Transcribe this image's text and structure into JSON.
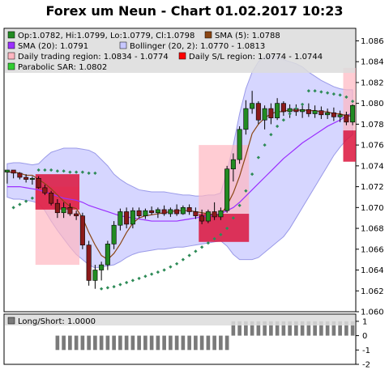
{
  "title": "Forex um Neun - Chart 01.02.2017 10:23",
  "legend": {
    "ohlc": "Op:1.0782, Hi:1.0799, Lo:1.0779, Cl:1.0798",
    "sma5": "SMA (5): 1.0788",
    "sma20": "SMA (20): 1.0791",
    "bollinger": "Bollinger (20, 2): 1.0770 - 1.0813",
    "daily_region": "Daily trading region: 1.0834 - 1.0774",
    "daily_sl": "Daily S/L region: 1.0774 - 1.0744",
    "sar": "Parabolic SAR: 1.0802",
    "long_short": "Long/Short: 1.0000"
  },
  "colors": {
    "candle_up": "#228b22",
    "candle_down": "#8b1a1a",
    "sma5": "#8b4513",
    "sma20": "#9b30ff",
    "bollinger_fill": "#c8c8ff",
    "bollinger_line": "#9a9ae8",
    "region_pink": "#ffb6c1",
    "region_red": "#dc143c",
    "sar": "#2e8b57",
    "bars": "#7a7a7a"
  },
  "chart_data": [
    {
      "type": "candlestick",
      "ylim": [
        1.06,
        1.0872
      ],
      "yticks": [
        "1.060",
        "1.062",
        "1.064",
        "1.066",
        "1.068",
        "1.070",
        "1.072",
        "1.074",
        "1.076",
        "1.078",
        "1.080",
        "1.082",
        "1.084",
        "1.086"
      ],
      "candles": [
        {
          "o": 1.0734,
          "h": 1.0736,
          "l": 1.0723,
          "c": 1.0736
        },
        {
          "o": 1.0736,
          "h": 1.0736,
          "l": 1.0728,
          "c": 1.0733
        },
        {
          "o": 1.0733,
          "h": 1.0734,
          "l": 1.0727,
          "c": 1.0729
        },
        {
          "o": 1.0729,
          "h": 1.0732,
          "l": 1.0724,
          "c": 1.0727
        },
        {
          "o": 1.0727,
          "h": 1.073,
          "l": 1.0722,
          "c": 1.0728
        },
        {
          "o": 1.0728,
          "h": 1.073,
          "l": 1.0718,
          "c": 1.0719
        },
        {
          "o": 1.0719,
          "h": 1.0722,
          "l": 1.0712,
          "c": 1.0714
        },
        {
          "o": 1.0714,
          "h": 1.0716,
          "l": 1.0702,
          "c": 1.0704
        },
        {
          "o": 1.0704,
          "h": 1.0708,
          "l": 1.069,
          "c": 1.0695
        },
        {
          "o": 1.0695,
          "h": 1.0705,
          "l": 1.069,
          "c": 1.07
        },
        {
          "o": 1.07,
          "h": 1.0704,
          "l": 1.0692,
          "c": 1.0694
        },
        {
          "o": 1.0694,
          "h": 1.0697,
          "l": 1.0688,
          "c": 1.0692
        },
        {
          "o": 1.0692,
          "h": 1.0695,
          "l": 1.066,
          "c": 1.0664
        },
        {
          "o": 1.0664,
          "h": 1.0668,
          "l": 1.0625,
          "c": 1.063
        },
        {
          "o": 1.063,
          "h": 1.0645,
          "l": 1.0622,
          "c": 1.064
        },
        {
          "o": 1.064,
          "h": 1.0648,
          "l": 1.063,
          "c": 1.0645
        },
        {
          "o": 1.0645,
          "h": 1.0668,
          "l": 1.064,
          "c": 1.0665
        },
        {
          "o": 1.0665,
          "h": 1.0687,
          "l": 1.066,
          "c": 1.0683
        },
        {
          "o": 1.0683,
          "h": 1.0699,
          "l": 1.0678,
          "c": 1.0696
        },
        {
          "o": 1.0696,
          "h": 1.07,
          "l": 1.068,
          "c": 1.0684
        },
        {
          "o": 1.0684,
          "h": 1.07,
          "l": 1.068,
          "c": 1.0697
        },
        {
          "o": 1.0697,
          "h": 1.07,
          "l": 1.069,
          "c": 1.0692
        },
        {
          "o": 1.0692,
          "h": 1.0699,
          "l": 1.0689,
          "c": 1.0697
        },
        {
          "o": 1.0697,
          "h": 1.0701,
          "l": 1.0693,
          "c": 1.0695
        },
        {
          "o": 1.0695,
          "h": 1.07,
          "l": 1.069,
          "c": 1.0698
        },
        {
          "o": 1.0698,
          "h": 1.0702,
          "l": 1.0692,
          "c": 1.0694
        },
        {
          "o": 1.0694,
          "h": 1.07,
          "l": 1.0691,
          "c": 1.0698
        },
        {
          "o": 1.0698,
          "h": 1.0703,
          "l": 1.0692,
          "c": 1.0694
        },
        {
          "o": 1.0694,
          "h": 1.0702,
          "l": 1.0693,
          "c": 1.07
        },
        {
          "o": 1.07,
          "h": 1.0703,
          "l": 1.0693,
          "c": 1.0696
        },
        {
          "o": 1.0696,
          "h": 1.07,
          "l": 1.0689,
          "c": 1.0692
        },
        {
          "o": 1.0692,
          "h": 1.0698,
          "l": 1.0684,
          "c": 1.0687
        },
        {
          "o": 1.0687,
          "h": 1.0698,
          "l": 1.0685,
          "c": 1.0696
        },
        {
          "o": 1.0696,
          "h": 1.0705,
          "l": 1.0688,
          "c": 1.0691
        },
        {
          "o": 1.0691,
          "h": 1.07,
          "l": 1.0688,
          "c": 1.0697
        },
        {
          "o": 1.0697,
          "h": 1.074,
          "l": 1.0695,
          "c": 1.0737
        },
        {
          "o": 1.0737,
          "h": 1.0752,
          "l": 1.0725,
          "c": 1.0746
        },
        {
          "o": 1.0746,
          "h": 1.0778,
          "l": 1.0742,
          "c": 1.0775
        },
        {
          "o": 1.0775,
          "h": 1.0803,
          "l": 1.077,
          "c": 1.0795
        },
        {
          "o": 1.0795,
          "h": 1.0812,
          "l": 1.079,
          "c": 1.08
        },
        {
          "o": 1.08,
          "h": 1.0802,
          "l": 1.078,
          "c": 1.0784
        },
        {
          "o": 1.0784,
          "h": 1.0798,
          "l": 1.0775,
          "c": 1.0795
        },
        {
          "o": 1.0795,
          "h": 1.08,
          "l": 1.078,
          "c": 1.0786
        },
        {
          "o": 1.0786,
          "h": 1.0805,
          "l": 1.0784,
          "c": 1.08
        },
        {
          "o": 1.08,
          "h": 1.0802,
          "l": 1.0788,
          "c": 1.0792
        },
        {
          "o": 1.0792,
          "h": 1.0799,
          "l": 1.0786,
          "c": 1.0795
        },
        {
          "o": 1.0795,
          "h": 1.0799,
          "l": 1.0788,
          "c": 1.0792
        },
        {
          "o": 1.0792,
          "h": 1.0798,
          "l": 1.0786,
          "c": 1.0794
        },
        {
          "o": 1.0794,
          "h": 1.08,
          "l": 1.0787,
          "c": 1.079
        },
        {
          "o": 1.079,
          "h": 1.0798,
          "l": 1.0786,
          "c": 1.0793
        },
        {
          "o": 1.0793,
          "h": 1.0797,
          "l": 1.0785,
          "c": 1.0789
        },
        {
          "o": 1.0789,
          "h": 1.0795,
          "l": 1.0785,
          "c": 1.0791
        },
        {
          "o": 1.0791,
          "h": 1.0796,
          "l": 1.0783,
          "c": 1.0787
        },
        {
          "o": 1.0787,
          "h": 1.0793,
          "l": 1.0782,
          "c": 1.0789
        },
        {
          "o": 1.0789,
          "h": 1.0792,
          "l": 1.0779,
          "c": 1.0782
        },
        {
          "o": 1.0782,
          "h": 1.0799,
          "l": 1.0779,
          "c": 1.0798
        }
      ],
      "sma5": [
        1.0734,
        1.0734,
        1.0733,
        1.0731,
        1.0731,
        1.0727,
        1.0723,
        1.0718,
        1.0712,
        1.0706,
        1.0701,
        1.0699,
        1.069,
        1.0676,
        1.0664,
        1.0654,
        1.065,
        1.0656,
        1.0665,
        1.0676,
        1.0685,
        1.069,
        1.0692,
        1.0693,
        1.0694,
        1.0695,
        1.0696,
        1.0697,
        1.0697,
        1.0697,
        1.0696,
        1.0695,
        1.0694,
        1.0693,
        1.0693,
        1.0702,
        1.0714,
        1.073,
        1.075,
        1.0771,
        1.078,
        1.0786,
        1.079,
        1.0792,
        1.0792,
        1.0794,
        1.0793,
        1.0794,
        1.0793,
        1.0793,
        1.0792,
        1.0792,
        1.079,
        1.079,
        1.0788,
        1.0788
      ],
      "sma20": [
        1.072,
        1.072,
        1.072,
        1.0719,
        1.0718,
        1.0717,
        1.0715,
        1.0713,
        1.0711,
        1.0709,
        1.0708,
        1.0707,
        1.0705,
        1.0702,
        1.07,
        1.0698,
        1.0696,
        1.0694,
        1.0692,
        1.0691,
        1.069,
        1.0689,
        1.0688,
        1.0687,
        1.0687,
        1.0687,
        1.0687,
        1.0687,
        1.0688,
        1.0689,
        1.069,
        1.0691,
        1.0692,
        1.0693,
        1.0694,
        1.0697,
        1.07,
        1.0705,
        1.0711,
        1.0717,
        1.0723,
        1.0729,
        1.0735,
        1.0741,
        1.0747,
        1.0752,
        1.0757,
        1.0762,
        1.0766,
        1.077,
        1.0774,
        1.0778,
        1.0781,
        1.0784,
        1.0788,
        1.0791
      ],
      "boll_upper": [
        1.0742,
        1.0743,
        1.0743,
        1.0742,
        1.0741,
        1.0742,
        1.0748,
        1.0753,
        1.0755,
        1.0757,
        1.0757,
        1.0757,
        1.0756,
        1.0755,
        1.0752,
        1.0746,
        1.074,
        1.0732,
        1.0727,
        1.0723,
        1.072,
        1.0717,
        1.0716,
        1.0715,
        1.0715,
        1.0715,
        1.0714,
        1.0713,
        1.0712,
        1.0712,
        1.0711,
        1.0711,
        1.0712,
        1.0712,
        1.0714,
        1.0735,
        1.076,
        1.079,
        1.0814,
        1.083,
        1.084,
        1.0845,
        1.0846,
        1.0845,
        1.0842,
        1.084,
        1.0838,
        1.0835,
        1.083,
        1.0826,
        1.0822,
        1.0819,
        1.0816,
        1.0814,
        1.0813,
        1.0813
      ],
      "boll_lower": [
        1.071,
        1.0708,
        1.0708,
        1.0707,
        1.0706,
        1.0704,
        1.0697,
        1.0687,
        1.0678,
        1.067,
        1.0662,
        1.0655,
        1.065,
        1.0645,
        1.0642,
        1.0643,
        1.0644,
        1.0645,
        1.0648,
        1.0652,
        1.0655,
        1.0657,
        1.0658,
        1.0659,
        1.066,
        1.066,
        1.0661,
        1.0662,
        1.0662,
        1.0663,
        1.0664,
        1.0665,
        1.0666,
        1.0667,
        1.0668,
        1.0663,
        1.0655,
        1.065,
        1.065,
        1.065,
        1.0652,
        1.0657,
        1.0662,
        1.0667,
        1.0672,
        1.068,
        1.069,
        1.07,
        1.071,
        1.072,
        1.073,
        1.074,
        1.075,
        1.0758,
        1.0765,
        1.077
      ],
      "sar": [
        null,
        1.07,
        1.0703,
        1.0706,
        1.0709,
        1.0736,
        1.0736,
        1.0736,
        1.0735,
        1.0735,
        1.0734,
        1.0734,
        1.0734,
        1.0733,
        1.0733,
        1.0622,
        1.0623,
        1.0624,
        1.0626,
        1.0628,
        1.063,
        1.0632,
        1.0634,
        1.0636,
        1.0638,
        1.064,
        1.0643,
        1.0646,
        1.065,
        1.0654,
        1.0658,
        1.0662,
        1.0666,
        1.067,
        1.0674,
        1.068,
        1.069,
        1.0702,
        1.0716,
        1.0732,
        1.0748,
        1.076,
        1.077,
        1.0778,
        1.0784,
        1.079,
        1.0795,
        1.0799,
        1.0812,
        1.0812,
        1.0811,
        1.081,
        1.0809,
        1.0808,
        1.0806,
        1.0802
      ],
      "regions": [
        {
          "from": 5,
          "to": 12,
          "top": 1.072,
          "bottom": 1.0645,
          "color": "pink"
        },
        {
          "from": 5,
          "to": 12,
          "top": 1.0732,
          "bottom": 1.0698,
          "color": "red"
        },
        {
          "from": 31,
          "to": 39,
          "top": 1.076,
          "bottom": 1.0694,
          "color": "pink"
        },
        {
          "from": 31,
          "to": 39,
          "top": 1.0694,
          "bottom": 1.0667,
          "color": "red"
        },
        {
          "from": 54,
          "to": 56,
          "top": 1.0834,
          "bottom": 1.0774,
          "color": "pink"
        },
        {
          "from": 54,
          "to": 56,
          "top": 1.0774,
          "bottom": 1.0744,
          "color": "red"
        }
      ]
    },
    {
      "type": "bar",
      "name": "Long/Short",
      "ylim": [
        -2,
        1.5
      ],
      "yticks": [
        "1",
        "0",
        "-1",
        "-2"
      ],
      "values": [
        0,
        0,
        0,
        0,
        0,
        0,
        0,
        0,
        -1,
        -1,
        -1,
        -1,
        -1,
        -1,
        -1,
        -1,
        -1,
        -1,
        -1,
        -1,
        -1,
        -1,
        -1,
        -1,
        -1,
        -1,
        -1,
        -1,
        -1,
        -1,
        -1,
        -1,
        -1,
        -1,
        -1,
        -1,
        1,
        1,
        1,
        1,
        1,
        1,
        1,
        1,
        1,
        1,
        1,
        1,
        1,
        1,
        1,
        1,
        1,
        1,
        1,
        1
      ]
    }
  ]
}
